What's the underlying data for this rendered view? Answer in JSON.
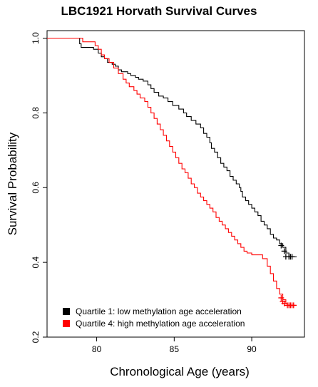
{
  "chart_data": {
    "type": "line",
    "title": "LBC1921 Horvath Survival Curves",
    "xlabel": "Chronological Age (years)",
    "ylabel": "Survival Probability",
    "xlim": [
      76.8,
      93.4
    ],
    "ylim": [
      0.2,
      1.02
    ],
    "x_ticks": [
      "80",
      "85",
      "90"
    ],
    "y_ticks": [
      "0.2",
      "0.4",
      "0.6",
      "0.8",
      "1.0"
    ],
    "grid": false,
    "legend_position": "bottom-left",
    "series": [
      {
        "name": "Quartile 1: low methylation age acceleration",
        "color": "#000000",
        "steps": [
          [
            76.8,
            1.0
          ],
          [
            78.8,
            1.0
          ],
          [
            78.9,
            0.985
          ],
          [
            79.0,
            0.975
          ],
          [
            79.6,
            0.975
          ],
          [
            79.8,
            0.97
          ],
          [
            80.1,
            0.96
          ],
          [
            80.3,
            0.95
          ],
          [
            80.5,
            0.945
          ],
          [
            80.7,
            0.935
          ],
          [
            81.0,
            0.93
          ],
          [
            81.2,
            0.925
          ],
          [
            81.4,
            0.915
          ],
          [
            81.6,
            0.91
          ],
          [
            82.0,
            0.905
          ],
          [
            82.2,
            0.9
          ],
          [
            82.5,
            0.895
          ],
          [
            82.7,
            0.89
          ],
          [
            83.0,
            0.885
          ],
          [
            83.3,
            0.875
          ],
          [
            83.5,
            0.865
          ],
          [
            83.7,
            0.855
          ],
          [
            84.0,
            0.845
          ],
          [
            84.3,
            0.84
          ],
          [
            84.6,
            0.83
          ],
          [
            84.9,
            0.82
          ],
          [
            85.3,
            0.81
          ],
          [
            85.6,
            0.8
          ],
          [
            85.8,
            0.79
          ],
          [
            86.1,
            0.78
          ],
          [
            86.4,
            0.77
          ],
          [
            86.7,
            0.76
          ],
          [
            86.9,
            0.745
          ],
          [
            87.1,
            0.735
          ],
          [
            87.3,
            0.72
          ],
          [
            87.4,
            0.705
          ],
          [
            87.6,
            0.695
          ],
          [
            87.8,
            0.68
          ],
          [
            88.0,
            0.665
          ],
          [
            88.2,
            0.655
          ],
          [
            88.4,
            0.645
          ],
          [
            88.6,
            0.63
          ],
          [
            88.8,
            0.62
          ],
          [
            89.0,
            0.61
          ],
          [
            89.2,
            0.6
          ],
          [
            89.3,
            0.59
          ],
          [
            89.4,
            0.575
          ],
          [
            89.6,
            0.565
          ],
          [
            89.8,
            0.555
          ],
          [
            90.0,
            0.545
          ],
          [
            90.2,
            0.535
          ],
          [
            90.4,
            0.525
          ],
          [
            90.6,
            0.51
          ],
          [
            90.8,
            0.5
          ],
          [
            91.0,
            0.49
          ],
          [
            91.2,
            0.475
          ],
          [
            91.4,
            0.465
          ],
          [
            91.6,
            0.46
          ],
          [
            91.8,
            0.45
          ],
          [
            92.0,
            0.44
          ],
          [
            92.2,
            0.425
          ],
          [
            92.4,
            0.415
          ],
          [
            92.9,
            0.415
          ]
        ],
        "censored": [
          [
            91.9,
            0.445
          ],
          [
            92.1,
            0.43
          ],
          [
            92.2,
            0.415
          ],
          [
            92.4,
            0.415
          ],
          [
            92.5,
            0.415
          ],
          [
            92.6,
            0.415
          ]
        ]
      },
      {
        "name": "Quartile 4: high methylation age acceleration",
        "color": "#ff0000",
        "steps": [
          [
            76.8,
            1.0
          ],
          [
            79.0,
            1.0
          ],
          [
            79.1,
            0.99
          ],
          [
            79.9,
            0.98
          ],
          [
            80.1,
            0.97
          ],
          [
            80.3,
            0.955
          ],
          [
            80.5,
            0.945
          ],
          [
            80.8,
            0.935
          ],
          [
            81.1,
            0.92
          ],
          [
            81.4,
            0.905
          ],
          [
            81.7,
            0.89
          ],
          [
            81.9,
            0.88
          ],
          [
            82.1,
            0.87
          ],
          [
            82.4,
            0.86
          ],
          [
            82.6,
            0.85
          ],
          [
            82.8,
            0.84
          ],
          [
            83.1,
            0.83
          ],
          [
            83.3,
            0.815
          ],
          [
            83.5,
            0.8
          ],
          [
            83.7,
            0.785
          ],
          [
            83.9,
            0.77
          ],
          [
            84.1,
            0.755
          ],
          [
            84.3,
            0.74
          ],
          [
            84.5,
            0.725
          ],
          [
            84.7,
            0.71
          ],
          [
            84.9,
            0.695
          ],
          [
            85.1,
            0.68
          ],
          [
            85.3,
            0.665
          ],
          [
            85.5,
            0.65
          ],
          [
            85.7,
            0.64
          ],
          [
            85.9,
            0.625
          ],
          [
            86.1,
            0.61
          ],
          [
            86.3,
            0.6
          ],
          [
            86.5,
            0.585
          ],
          [
            86.7,
            0.575
          ],
          [
            86.9,
            0.565
          ],
          [
            87.1,
            0.555
          ],
          [
            87.3,
            0.545
          ],
          [
            87.5,
            0.535
          ],
          [
            87.7,
            0.52
          ],
          [
            87.9,
            0.51
          ],
          [
            88.1,
            0.5
          ],
          [
            88.3,
            0.49
          ],
          [
            88.5,
            0.48
          ],
          [
            88.7,
            0.47
          ],
          [
            88.9,
            0.46
          ],
          [
            89.1,
            0.45
          ],
          [
            89.3,
            0.44
          ],
          [
            89.5,
            0.43
          ],
          [
            89.7,
            0.425
          ],
          [
            90.0,
            0.42
          ],
          [
            90.4,
            0.42
          ],
          [
            90.7,
            0.41
          ],
          [
            91.0,
            0.39
          ],
          [
            91.2,
            0.37
          ],
          [
            91.4,
            0.35
          ],
          [
            91.6,
            0.33
          ],
          [
            91.8,
            0.315
          ],
          [
            92.0,
            0.3
          ],
          [
            92.2,
            0.29
          ],
          [
            92.3,
            0.285
          ],
          [
            92.9,
            0.285
          ]
        ],
        "censored": [
          [
            91.9,
            0.305
          ],
          [
            92.0,
            0.295
          ],
          [
            92.1,
            0.29
          ],
          [
            92.3,
            0.285
          ],
          [
            92.4,
            0.285
          ],
          [
            92.5,
            0.285
          ],
          [
            92.6,
            0.285
          ],
          [
            92.7,
            0.285
          ]
        ]
      }
    ]
  }
}
